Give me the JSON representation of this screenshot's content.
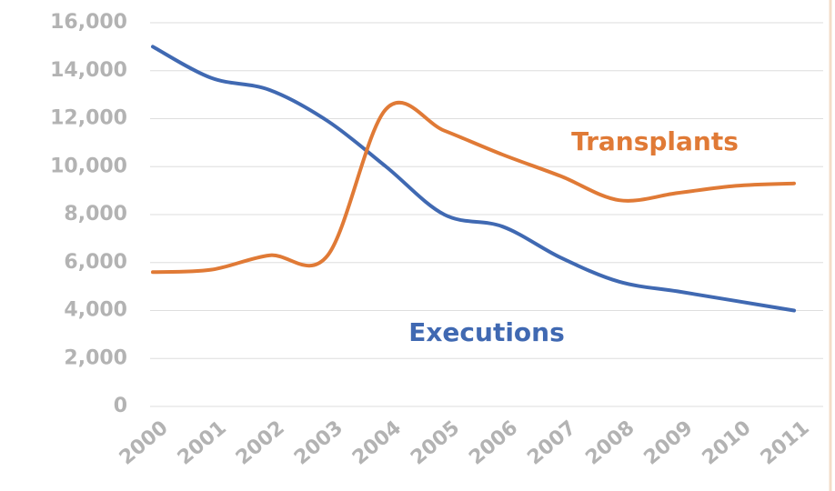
{
  "chart_data": {
    "type": "line",
    "categories": [
      "2000",
      "2001",
      "2002",
      "2003",
      "2004",
      "2005",
      "2006",
      "2007",
      "2008",
      "2009",
      "2010",
      "2011"
    ],
    "series": [
      {
        "name": "Executions",
        "color": "#4069b2",
        "values": [
          15000,
          13700,
          13200,
          11900,
          10000,
          8000,
          7500,
          6200,
          5200,
          4800,
          4400,
          4000
        ]
      },
      {
        "name": "Transplants",
        "color": "#e07a36",
        "values": [
          5600,
          5700,
          6300,
          6300,
          12400,
          11500,
          10500,
          9600,
          8600,
          8900,
          9200,
          9300
        ]
      }
    ],
    "ylim": [
      0,
      16000
    ],
    "yticks": [
      0,
      {
        "value": 2000,
        "label": "2,000"
      },
      {
        "value": 4000,
        "label": "4,000"
      },
      {
        "value": 6000,
        "label": "6,000"
      },
      {
        "value": 8000,
        "label": "8,000"
      },
      {
        "value": 10000,
        "label": "10,000"
      },
      {
        "value": 12000,
        "label": "12,000"
      },
      {
        "value": 14000,
        "label": "14,000"
      },
      {
        "value": 16000,
        "label": "16,000"
      }
    ],
    "grid": true,
    "smooth": true
  }
}
